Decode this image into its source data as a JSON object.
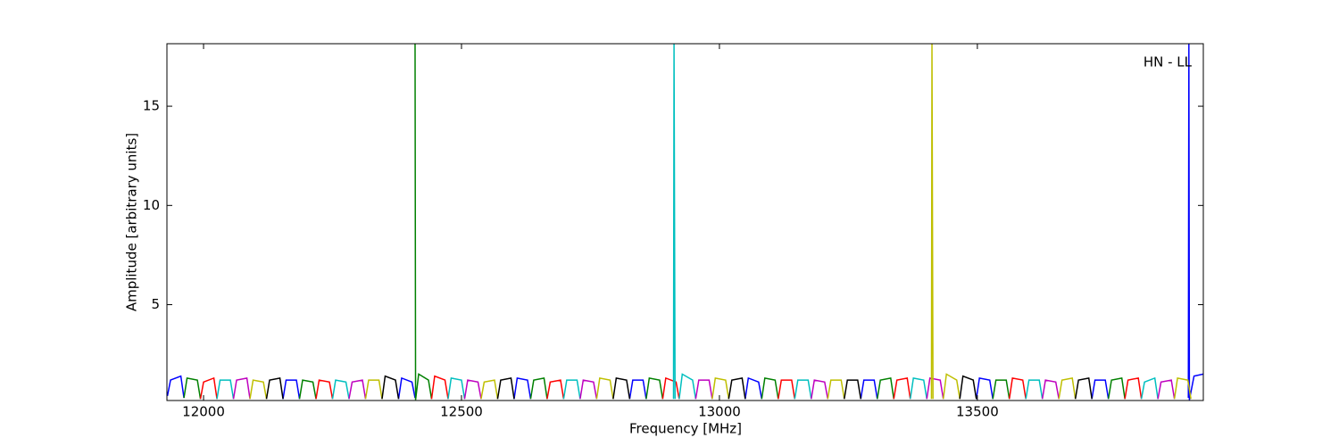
{
  "chart_data": {
    "type": "line",
    "annotation": "HN - LL",
    "x_label": "Frequency [MHz]",
    "y_label": "Amplitude [arbitrary units]",
    "xlim": [
      11929,
      13938
    ],
    "ylim": [
      0.17,
      18.15
    ],
    "xticks": [
      12000,
      12500,
      13000,
      13500
    ],
    "yticks": [
      5,
      10,
      15
    ],
    "series": [
      {
        "color": "#0000ff",
        "x": [
          11930,
          11936,
          11956,
          11962,
          null,
          12154,
          12160,
          12180,
          12186,
          null,
          12378,
          12384,
          12404,
          12410,
          null,
          12602,
          12608,
          12628,
          12634,
          null,
          12826,
          12832,
          12852,
          12858,
          null,
          13050,
          13056,
          13076,
          13082,
          null,
          13274,
          13280,
          13300,
          13306,
          null,
          13498,
          13504,
          13524,
          13530,
          null,
          13722,
          13728,
          13748,
          13754,
          null,
          13909,
          13910,
          13911,
          13920,
          13938
        ],
        "values": [
          0.4,
          1.2,
          1.4,
          0.3,
          null,
          0.25,
          1.2,
          1.2,
          0.25,
          null,
          0.25,
          1.3,
          1.1,
          0.3,
          null,
          0.25,
          1.3,
          1.2,
          0.25,
          null,
          0.25,
          1.2,
          1.2,
          0.25,
          null,
          0.25,
          1.3,
          1.1,
          0.25,
          null,
          0.25,
          1.2,
          1.2,
          0.25,
          null,
          0.25,
          1.3,
          1.2,
          0.25,
          null,
          0.25,
          1.2,
          1.2,
          0.25,
          null,
          0.3,
          18.2,
          0.2,
          1.4,
          1.5
        ]
      },
      {
        "color": "#008000",
        "x": [
          11962,
          11968,
          11988,
          11994,
          null,
          12186,
          12192,
          12212,
          12218,
          null,
          12410,
          12411,
          12417,
          12436,
          12442,
          null,
          12634,
          12640,
          12660,
          12666,
          null,
          12858,
          12864,
          12884,
          12890,
          null,
          13082,
          13088,
          13108,
          13114,
          null,
          13306,
          13312,
          13332,
          13338,
          null,
          13530,
          13536,
          13556,
          13562,
          null,
          13754,
          13760,
          13780,
          13786
        ],
        "values": [
          0.3,
          1.3,
          1.2,
          0.25,
          null,
          0.25,
          1.2,
          1.1,
          0.25,
          null,
          18.2,
          0.2,
          1.5,
          1.2,
          0.25,
          null,
          0.25,
          1.2,
          1.3,
          0.25,
          null,
          0.25,
          1.3,
          1.2,
          0.25,
          null,
          0.25,
          1.3,
          1.2,
          0.25,
          null,
          0.25,
          1.2,
          1.3,
          0.25,
          null,
          0.25,
          1.2,
          1.2,
          0.25,
          null,
          0.25,
          1.2,
          1.3,
          0.25
        ]
      },
      {
        "color": "#ff0000",
        "x": [
          11994,
          12000,
          12020,
          12026,
          null,
          12218,
          12224,
          12244,
          12250,
          null,
          12442,
          12448,
          12468,
          12474,
          null,
          12666,
          12672,
          12692,
          12698,
          null,
          12890,
          12896,
          12916,
          12922,
          null,
          13114,
          13120,
          13140,
          13146,
          null,
          13338,
          13344,
          13364,
          13370,
          null,
          13562,
          13568,
          13588,
          13594,
          null,
          13786,
          13792,
          13812,
          13818
        ],
        "values": [
          0.25,
          1.1,
          1.3,
          0.25,
          null,
          0.25,
          1.2,
          1.1,
          0.25,
          null,
          0.25,
          1.4,
          1.2,
          0.25,
          null,
          0.25,
          1.1,
          1.2,
          0.25,
          null,
          0.25,
          1.3,
          1.1,
          0.25,
          null,
          0.25,
          1.2,
          1.2,
          0.25,
          null,
          0.25,
          1.2,
          1.3,
          0.25,
          null,
          0.25,
          1.3,
          1.2,
          0.25,
          null,
          0.25,
          1.2,
          1.3,
          0.25
        ]
      },
      {
        "color": "#00bfbf",
        "x": [
          12026,
          12032,
          12052,
          12058,
          null,
          12250,
          12256,
          12276,
          12282,
          null,
          12474,
          12480,
          12500,
          12506,
          null,
          12698,
          12704,
          12724,
          12730,
          null,
          12911,
          12912,
          12914,
          null,
          12922,
          12928,
          12948,
          12954,
          null,
          13146,
          13152,
          13172,
          13178,
          null,
          13370,
          13376,
          13396,
          13402,
          null,
          13594,
          13600,
          13620,
          13626,
          null,
          13818,
          13824,
          13844,
          13850
        ],
        "values": [
          0.25,
          1.2,
          1.2,
          0.25,
          null,
          0.25,
          1.2,
          1.1,
          0.25,
          null,
          0.25,
          1.3,
          1.2,
          0.25,
          null,
          0.25,
          1.2,
          1.2,
          0.25,
          null,
          0.25,
          18.2,
          0.25,
          null,
          0.25,
          1.5,
          1.2,
          0.25,
          null,
          0.25,
          1.2,
          1.2,
          0.25,
          null,
          0.25,
          1.3,
          1.2,
          0.25,
          null,
          0.25,
          1.2,
          1.2,
          0.25,
          null,
          0.25,
          1.1,
          1.3,
          0.25
        ]
      },
      {
        "color": "#bf00bf",
        "x": [
          12058,
          12064,
          12084,
          12090,
          null,
          12282,
          12288,
          12308,
          12314,
          null,
          12506,
          12512,
          12532,
          12538,
          null,
          12730,
          12736,
          12756,
          12762,
          null,
          12954,
          12960,
          12980,
          12986,
          null,
          13178,
          13184,
          13204,
          13210,
          null,
          13402,
          13408,
          13428,
          13434,
          null,
          13626,
          13632,
          13652,
          13658,
          null,
          13850,
          13856,
          13876,
          13882
        ],
        "values": [
          0.25,
          1.2,
          1.3,
          0.25,
          null,
          0.25,
          1.1,
          1.2,
          0.25,
          null,
          0.25,
          1.2,
          1.1,
          0.25,
          null,
          0.25,
          1.2,
          1.1,
          0.25,
          null,
          0.25,
          1.2,
          1.2,
          0.25,
          null,
          0.25,
          1.2,
          1.1,
          0.25,
          null,
          0.25,
          1.3,
          1.2,
          0.25,
          null,
          0.25,
          1.2,
          1.1,
          0.25,
          null,
          0.25,
          1.1,
          1.2,
          0.25
        ]
      },
      {
        "color": "#bfbf00",
        "x": [
          12090,
          12096,
          12116,
          12122,
          null,
          12314,
          12320,
          12340,
          12346,
          null,
          12538,
          12544,
          12564,
          12570,
          null,
          12762,
          12768,
          12788,
          12794,
          null,
          12986,
          12992,
          13012,
          13018,
          null,
          13210,
          13216,
          13236,
          13242,
          null,
          13411,
          13412,
          13414,
          null,
          13434,
          13440,
          13460,
          13466,
          null,
          13658,
          13664,
          13684,
          13690,
          null,
          13882,
          13888,
          13908,
          13914
        ],
        "values": [
          0.25,
          1.2,
          1.1,
          0.25,
          null,
          0.25,
          1.2,
          1.2,
          0.25,
          null,
          0.25,
          1.1,
          1.2,
          0.25,
          null,
          0.25,
          1.3,
          1.2,
          0.25,
          null,
          0.25,
          1.3,
          1.2,
          0.25,
          null,
          0.25,
          1.2,
          1.2,
          0.25,
          null,
          0.25,
          18.2,
          0.25,
          null,
          0.25,
          1.5,
          1.2,
          0.25,
          null,
          0.25,
          1.2,
          1.3,
          0.25,
          null,
          0.25,
          1.3,
          1.2,
          0.25
        ]
      },
      {
        "color": "#000000",
        "x": [
          12122,
          12128,
          12148,
          12154,
          null,
          12346,
          12352,
          12372,
          12378,
          null,
          12570,
          12576,
          12596,
          12602,
          null,
          12794,
          12800,
          12820,
          12826,
          null,
          13018,
          13024,
          13044,
          13050,
          null,
          13242,
          13248,
          13268,
          13274,
          null,
          13466,
          13472,
          13492,
          13498,
          null,
          13690,
          13696,
          13716,
          13722
        ],
        "values": [
          0.25,
          1.2,
          1.3,
          0.25,
          null,
          0.25,
          1.4,
          1.2,
          0.25,
          null,
          0.25,
          1.2,
          1.3,
          0.25,
          null,
          0.25,
          1.3,
          1.2,
          0.25,
          null,
          0.25,
          1.2,
          1.3,
          0.25,
          null,
          0.25,
          1.2,
          1.2,
          0.25,
          null,
          0.25,
          1.4,
          1.2,
          0.25,
          null,
          0.25,
          1.2,
          1.3,
          0.25
        ]
      }
    ]
  }
}
